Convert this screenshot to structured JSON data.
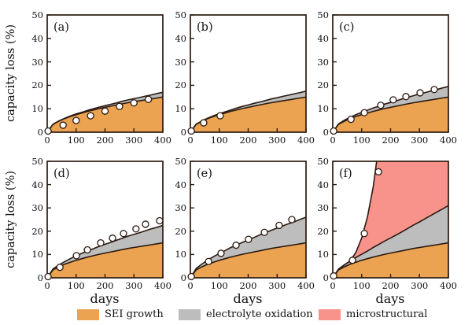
{
  "figure": {
    "background": "#ffffff",
    "line_color": "#2b1a10",
    "text_color": "#111111",
    "marker": {
      "fill": "#ffffff",
      "stroke": "#2b1a10",
      "radius": 4
    }
  },
  "legend": {
    "items": [
      {
        "label": "SEI growth",
        "color": "#EBA351"
      },
      {
        "label": "electrolyte oxidation",
        "color": "#BDBDBD"
      },
      {
        "label": "microstructural",
        "color": "#F8938C"
      }
    ]
  },
  "chart_data": {
    "type": "area",
    "stacked": true,
    "grid": false,
    "xlabel": "days",
    "ylabel": "capacity loss (%)",
    "xlim": [
      0,
      400
    ],
    "ylim": [
      0,
      50
    ],
    "xticks": [
      0,
      100,
      200,
      300,
      400
    ],
    "yticks": [
      0,
      10,
      20,
      30,
      40,
      50
    ],
    "series_names": [
      "SEI growth",
      "electrolyte oxidation",
      "microstructural"
    ],
    "x": [
      0,
      20,
      40,
      60,
      80,
      100,
      120,
      140,
      160,
      180,
      200,
      220,
      240,
      260,
      280,
      300,
      320,
      340,
      360,
      380,
      400
    ],
    "panels": [
      {
        "label": "(a)",
        "sei": [
          0,
          3.4,
          4.7,
          5.8,
          6.7,
          7.5,
          8.2,
          8.9,
          9.5,
          10.1,
          10.6,
          11.1,
          11.6,
          12.1,
          12.6,
          13.0,
          13.4,
          13.8,
          14.2,
          14.6,
          15.0
        ],
        "elox": [
          0,
          0,
          0.1,
          0.1,
          0.2,
          0.3,
          0.3,
          0.4,
          0.5,
          0.6,
          0.7,
          0.8,
          0.9,
          1.1,
          1.2,
          1.3,
          1.4,
          1.6,
          1.7,
          1.9,
          2.0
        ],
        "points": [
          [
            3,
            0.5
          ],
          [
            55,
            3
          ],
          [
            100,
            5
          ],
          [
            150,
            7
          ],
          [
            200,
            9
          ],
          [
            250,
            11
          ],
          [
            300,
            12.5
          ],
          [
            350,
            14
          ]
        ]
      },
      {
        "label": "(b)",
        "sei": [
          0,
          3.4,
          4.7,
          5.8,
          6.7,
          7.5,
          8.2,
          8.9,
          9.5,
          10.1,
          10.6,
          11.1,
          11.6,
          12.1,
          12.6,
          13.0,
          13.4,
          13.8,
          14.2,
          14.6,
          15.0
        ],
        "elox": [
          0,
          0.1,
          0.1,
          0.2,
          0.3,
          0.4,
          0.5,
          0.6,
          0.8,
          0.9,
          1.0,
          1.2,
          1.3,
          1.4,
          1.6,
          1.7,
          1.9,
          2.0,
          2.2,
          2.3,
          2.5
        ],
        "points": [
          [
            3,
            0.5
          ],
          [
            46,
            4
          ],
          [
            103,
            7
          ]
        ]
      },
      {
        "label": "(c)",
        "sei": [
          0,
          3.4,
          4.7,
          5.8,
          6.7,
          7.5,
          8.2,
          8.9,
          9.5,
          10.1,
          10.6,
          11.1,
          11.6,
          12.1,
          12.6,
          13.0,
          13.4,
          13.8,
          14.2,
          14.6,
          15.0
        ],
        "elox": [
          0,
          0.2,
          0.4,
          0.6,
          0.8,
          1.0,
          1.2,
          1.4,
          1.6,
          1.9,
          2.1,
          2.3,
          2.6,
          2.8,
          3.0,
          3.3,
          3.5,
          3.8,
          4.0,
          4.3,
          4.5
        ],
        "points": [
          [
            3,
            0.5
          ],
          [
            63,
            5.5
          ],
          [
            109,
            8.3
          ],
          [
            166,
            11.5
          ],
          [
            209,
            13.8
          ],
          [
            253,
            15.2
          ],
          [
            302,
            16.8
          ],
          [
            351,
            18.2
          ]
        ]
      },
      {
        "label": "(d)",
        "sei": [
          0,
          3.4,
          4.7,
          5.8,
          6.7,
          7.5,
          8.2,
          8.9,
          9.5,
          10.1,
          10.6,
          11.1,
          11.6,
          12.1,
          12.6,
          13.0,
          13.4,
          13.8,
          14.2,
          14.6,
          15.0
        ],
        "elox": [
          0,
          0.4,
          0.8,
          1.1,
          1.5,
          1.9,
          2.3,
          2.6,
          3.0,
          3.4,
          3.8,
          4.1,
          4.5,
          4.9,
          5.3,
          5.6,
          6.0,
          6.4,
          6.8,
          7.1,
          7.5
        ],
        "points": [
          [
            3,
            0.5
          ],
          [
            44,
            4.5
          ],
          [
            101,
            9.5
          ],
          [
            139,
            12
          ],
          [
            185,
            15
          ],
          [
            226,
            17
          ],
          [
            264,
            19
          ],
          [
            307,
            21
          ],
          [
            340,
            23
          ],
          [
            389,
            24.5
          ]
        ]
      },
      {
        "label": "(e)",
        "sei": [
          0,
          3.4,
          4.7,
          5.8,
          6.7,
          7.5,
          8.2,
          8.9,
          9.5,
          10.1,
          10.6,
          11.1,
          11.6,
          12.1,
          12.6,
          13.0,
          13.4,
          13.8,
          14.2,
          14.6,
          15.0
        ],
        "elox": [
          0,
          0.6,
          1.2,
          1.8,
          2.4,
          2.9,
          3.5,
          4.1,
          4.6,
          5.1,
          5.7,
          6.2,
          6.8,
          7.3,
          7.8,
          8.4,
          8.9,
          9.4,
          9.9,
          10.5,
          11.0
        ],
        "points": [
          [
            3,
            0.5
          ],
          [
            63,
            7
          ],
          [
            106,
            10.5
          ],
          [
            158,
            14
          ],
          [
            201,
            16.5
          ],
          [
            256,
            19.5
          ],
          [
            307,
            22.5
          ],
          [
            351,
            25
          ]
        ]
      },
      {
        "label": "(f)",
        "sei": [
          0,
          3.4,
          4.7,
          5.8,
          6.7,
          7.5,
          8.2,
          8.9,
          9.5,
          10.1,
          10.6,
          11.1,
          11.6,
          12.1,
          12.6,
          13.0,
          13.4,
          13.8,
          14.2,
          14.6,
          15.0
        ],
        "elox": [
          0,
          0.3,
          0.8,
          1.4,
          2.0,
          2.6,
          3.3,
          4.1,
          4.9,
          5.7,
          6.5,
          7.3,
          8.2,
          9.1,
          10.1,
          11.0,
          12.0,
          13.0,
          14.0,
          15.0,
          16.0
        ],
        "micro": [
          0,
          0,
          0,
          0,
          2.2,
          7.0,
          14.6,
          26.0,
          43.2,
          60,
          60,
          60,
          60,
          60,
          60,
          60,
          60,
          60,
          60,
          60,
          60
        ],
        "points": [
          [
            3,
            0.8
          ],
          [
            68,
            7.5
          ],
          [
            109,
            19
          ],
          [
            158,
            45.5
          ]
        ]
      }
    ]
  }
}
